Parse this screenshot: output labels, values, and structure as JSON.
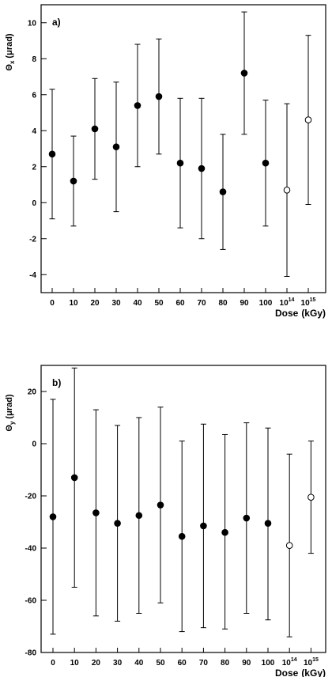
{
  "chart_data": [
    {
      "type": "scatter",
      "panel_label": "a)",
      "ylabel": {
        "main": "Θ",
        "sub": "x",
        "unit": "(μrad)"
      },
      "xlabel": "Dose (kGy)",
      "xlabel_parts": [
        "Dose",
        "(kGy)"
      ],
      "ylim": [
        -5,
        11
      ],
      "yticks": [
        -4,
        -2,
        0,
        2,
        4,
        6,
        8,
        10
      ],
      "categories": [
        {
          "base": "0",
          "sup": ""
        },
        {
          "base": "10",
          "sup": ""
        },
        {
          "base": "20",
          "sup": ""
        },
        {
          "base": "30",
          "sup": ""
        },
        {
          "base": "40",
          "sup": ""
        },
        {
          "base": "50",
          "sup": ""
        },
        {
          "base": "60",
          "sup": ""
        },
        {
          "base": "70",
          "sup": ""
        },
        {
          "base": "80",
          "sup": ""
        },
        {
          "base": "90",
          "sup": ""
        },
        {
          "base": "100",
          "sup": ""
        },
        {
          "base": "10",
          "sup": "14"
        },
        {
          "base": "10",
          "sup": "15"
        }
      ],
      "points": [
        {
          "y": 2.7,
          "lo": -0.9,
          "hi": 6.3,
          "filled": true
        },
        {
          "y": 1.2,
          "lo": -1.3,
          "hi": 3.7,
          "filled": true
        },
        {
          "y": 4.1,
          "lo": 1.3,
          "hi": 6.9,
          "filled": true
        },
        {
          "y": 3.1,
          "lo": -0.5,
          "hi": 6.7,
          "filled": true
        },
        {
          "y": 5.4,
          "lo": 2.0,
          "hi": 8.8,
          "filled": true
        },
        {
          "y": 5.9,
          "lo": 2.7,
          "hi": 9.1,
          "filled": true
        },
        {
          "y": 2.2,
          "lo": -1.4,
          "hi": 5.8,
          "filled": true
        },
        {
          "y": 1.9,
          "lo": -2.0,
          "hi": 5.8,
          "filled": true
        },
        {
          "y": 0.6,
          "lo": -2.6,
          "hi": 3.8,
          "filled": true
        },
        {
          "y": 7.2,
          "lo": 3.8,
          "hi": 10.6,
          "filled": true
        },
        {
          "y": 2.2,
          "lo": -1.3,
          "hi": 5.7,
          "filled": true
        },
        {
          "y": 0.7,
          "lo": -4.1,
          "hi": 5.5,
          "filled": false
        },
        {
          "y": 4.6,
          "lo": -0.1,
          "hi": 9.3,
          "filled": false
        }
      ]
    },
    {
      "type": "scatter",
      "panel_label": "b)",
      "ylabel": {
        "main": "Θ",
        "sub": "y",
        "unit": "(μrad)"
      },
      "xlabel": "Dose (kGy)",
      "xlabel_parts": [
        "Dose",
        "(kGy)"
      ],
      "ylim": [
        -80,
        30
      ],
      "yticks": [
        -80,
        -60,
        -40,
        -20,
        0,
        20
      ],
      "categories": [
        {
          "base": "0",
          "sup": ""
        },
        {
          "base": "10",
          "sup": ""
        },
        {
          "base": "20",
          "sup": ""
        },
        {
          "base": "30",
          "sup": ""
        },
        {
          "base": "40",
          "sup": ""
        },
        {
          "base": "50",
          "sup": ""
        },
        {
          "base": "60",
          "sup": ""
        },
        {
          "base": "70",
          "sup": ""
        },
        {
          "base": "80",
          "sup": ""
        },
        {
          "base": "90",
          "sup": ""
        },
        {
          "base": "100",
          "sup": ""
        },
        {
          "base": "10",
          "sup": "14"
        },
        {
          "base": "10",
          "sup": "15"
        }
      ],
      "points": [
        {
          "y": -28,
          "lo": -73,
          "hi": 17,
          "filled": true
        },
        {
          "y": -13,
          "lo": -55,
          "hi": 29,
          "filled": true
        },
        {
          "y": -26.5,
          "lo": -66,
          "hi": 13,
          "filled": true
        },
        {
          "y": -30.5,
          "lo": -68,
          "hi": 7,
          "filled": true
        },
        {
          "y": -27.5,
          "lo": -65,
          "hi": 10,
          "filled": true
        },
        {
          "y": -23.5,
          "lo": -61,
          "hi": 14,
          "filled": true
        },
        {
          "y": -35.5,
          "lo": -72,
          "hi": 1,
          "filled": true
        },
        {
          "y": -31.5,
          "lo": -70.5,
          "hi": 7.5,
          "filled": true
        },
        {
          "y": -34,
          "lo": -71,
          "hi": 3.5,
          "filled": true
        },
        {
          "y": -28.5,
          "lo": -65,
          "hi": 8,
          "filled": true
        },
        {
          "y": -30.5,
          "lo": -67.5,
          "hi": 6,
          "filled": true
        },
        {
          "y": -39,
          "lo": -74,
          "hi": -4,
          "filled": false
        },
        {
          "y": -20.5,
          "lo": -42,
          "hi": 1,
          "filled": false
        }
      ]
    }
  ]
}
